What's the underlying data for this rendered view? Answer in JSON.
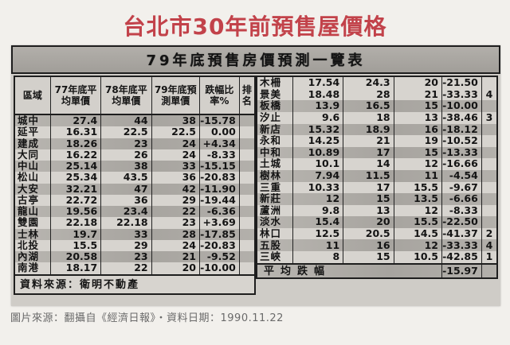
{
  "page": {
    "title": "台北市30年前預售屋價格",
    "caption": "圖片來源：翻攝自《經濟日報》・資料日期：1990.11.22"
  },
  "colors": {
    "accent_red": "#c2424a"
  },
  "table": {
    "banner": "79年底預售房價預測一覽表",
    "headers": [
      "區域",
      "77年底平均單價",
      "78年底平均單價",
      "79年底預測單價",
      "跌幅比率%",
      "排名"
    ],
    "left_rows": [
      [
        "城中",
        "27.4",
        "44",
        "38",
        "-15.78",
        ""
      ],
      [
        "延平",
        "16.31",
        "22.5",
        "22.5",
        "0.00",
        ""
      ],
      [
        "建成",
        "18.26",
        "23",
        "24",
        "+4.34",
        ""
      ],
      [
        "大同",
        "16.22",
        "26",
        "24",
        "-8.33",
        ""
      ],
      [
        "中山",
        "25.14",
        "38",
        "33",
        "-15.15",
        ""
      ],
      [
        "松山",
        "25.34",
        "43.5",
        "36",
        "-20.83",
        ""
      ],
      [
        "大安",
        "32.21",
        "47",
        "42",
        "-11.90",
        ""
      ],
      [
        "古亭",
        "22.72",
        "36",
        "29",
        "-19.44",
        ""
      ],
      [
        "龍山",
        "19.56",
        "23.4",
        "22",
        "-6.36",
        ""
      ],
      [
        "雙園",
        "22.18",
        "22.18",
        "23",
        "+3.69",
        ""
      ],
      [
        "士林",
        "19.7",
        "33",
        "28",
        "-17.85",
        ""
      ],
      [
        "北投",
        "15.5",
        "29",
        "24",
        "-20.83",
        ""
      ],
      [
        "內湖",
        "20.58",
        "23",
        "21",
        "-9.52",
        ""
      ],
      [
        "南港",
        "18.17",
        "22",
        "20",
        "-10.00",
        ""
      ]
    ],
    "right_rows": [
      [
        "木柵",
        "17.54",
        "24.3",
        "20",
        "-21.50",
        ""
      ],
      [
        "景美",
        "18.48",
        "28",
        "21",
        "-33.33",
        "4"
      ],
      [
        "板橋",
        "13.9",
        "16.5",
        "15",
        "-10.00",
        ""
      ],
      [
        "汐止",
        "9.6",
        "18",
        "13",
        "-38.46",
        "3"
      ],
      [
        "新店",
        "15.32",
        "18.9",
        "16",
        "-18.12",
        ""
      ],
      [
        "永和",
        "14.25",
        "21",
        "19",
        "-10.52",
        ""
      ],
      [
        "中和",
        "10.89",
        "17",
        "15",
        "-13.33",
        ""
      ],
      [
        "土城",
        "10.1",
        "14",
        "12",
        "-16.66",
        ""
      ],
      [
        "樹林",
        "7.94",
        "11.5",
        "11",
        "-4.54",
        ""
      ],
      [
        "三重",
        "10.33",
        "17",
        "15.5",
        "-9.67",
        ""
      ],
      [
        "新莊",
        "12",
        "15",
        "13.5",
        "-6.66",
        ""
      ],
      [
        "蘆洲",
        "9.8",
        "13",
        "12",
        "-8.33",
        ""
      ],
      [
        "淡水",
        "15.4",
        "20",
        "15.5",
        "-22.50",
        ""
      ],
      [
        "林口",
        "12.5",
        "20.5",
        "14.5",
        "-41.37",
        "2"
      ],
      [
        "五股",
        "11",
        "16",
        "12",
        "-33.33",
        "4"
      ],
      [
        "三峽",
        "8",
        "15",
        "10.5",
        "-42.85",
        "1"
      ]
    ],
    "left_footer": "資料來源：衛明不動產",
    "average": {
      "label": "平均跌幅",
      "value": "-15.97"
    }
  }
}
